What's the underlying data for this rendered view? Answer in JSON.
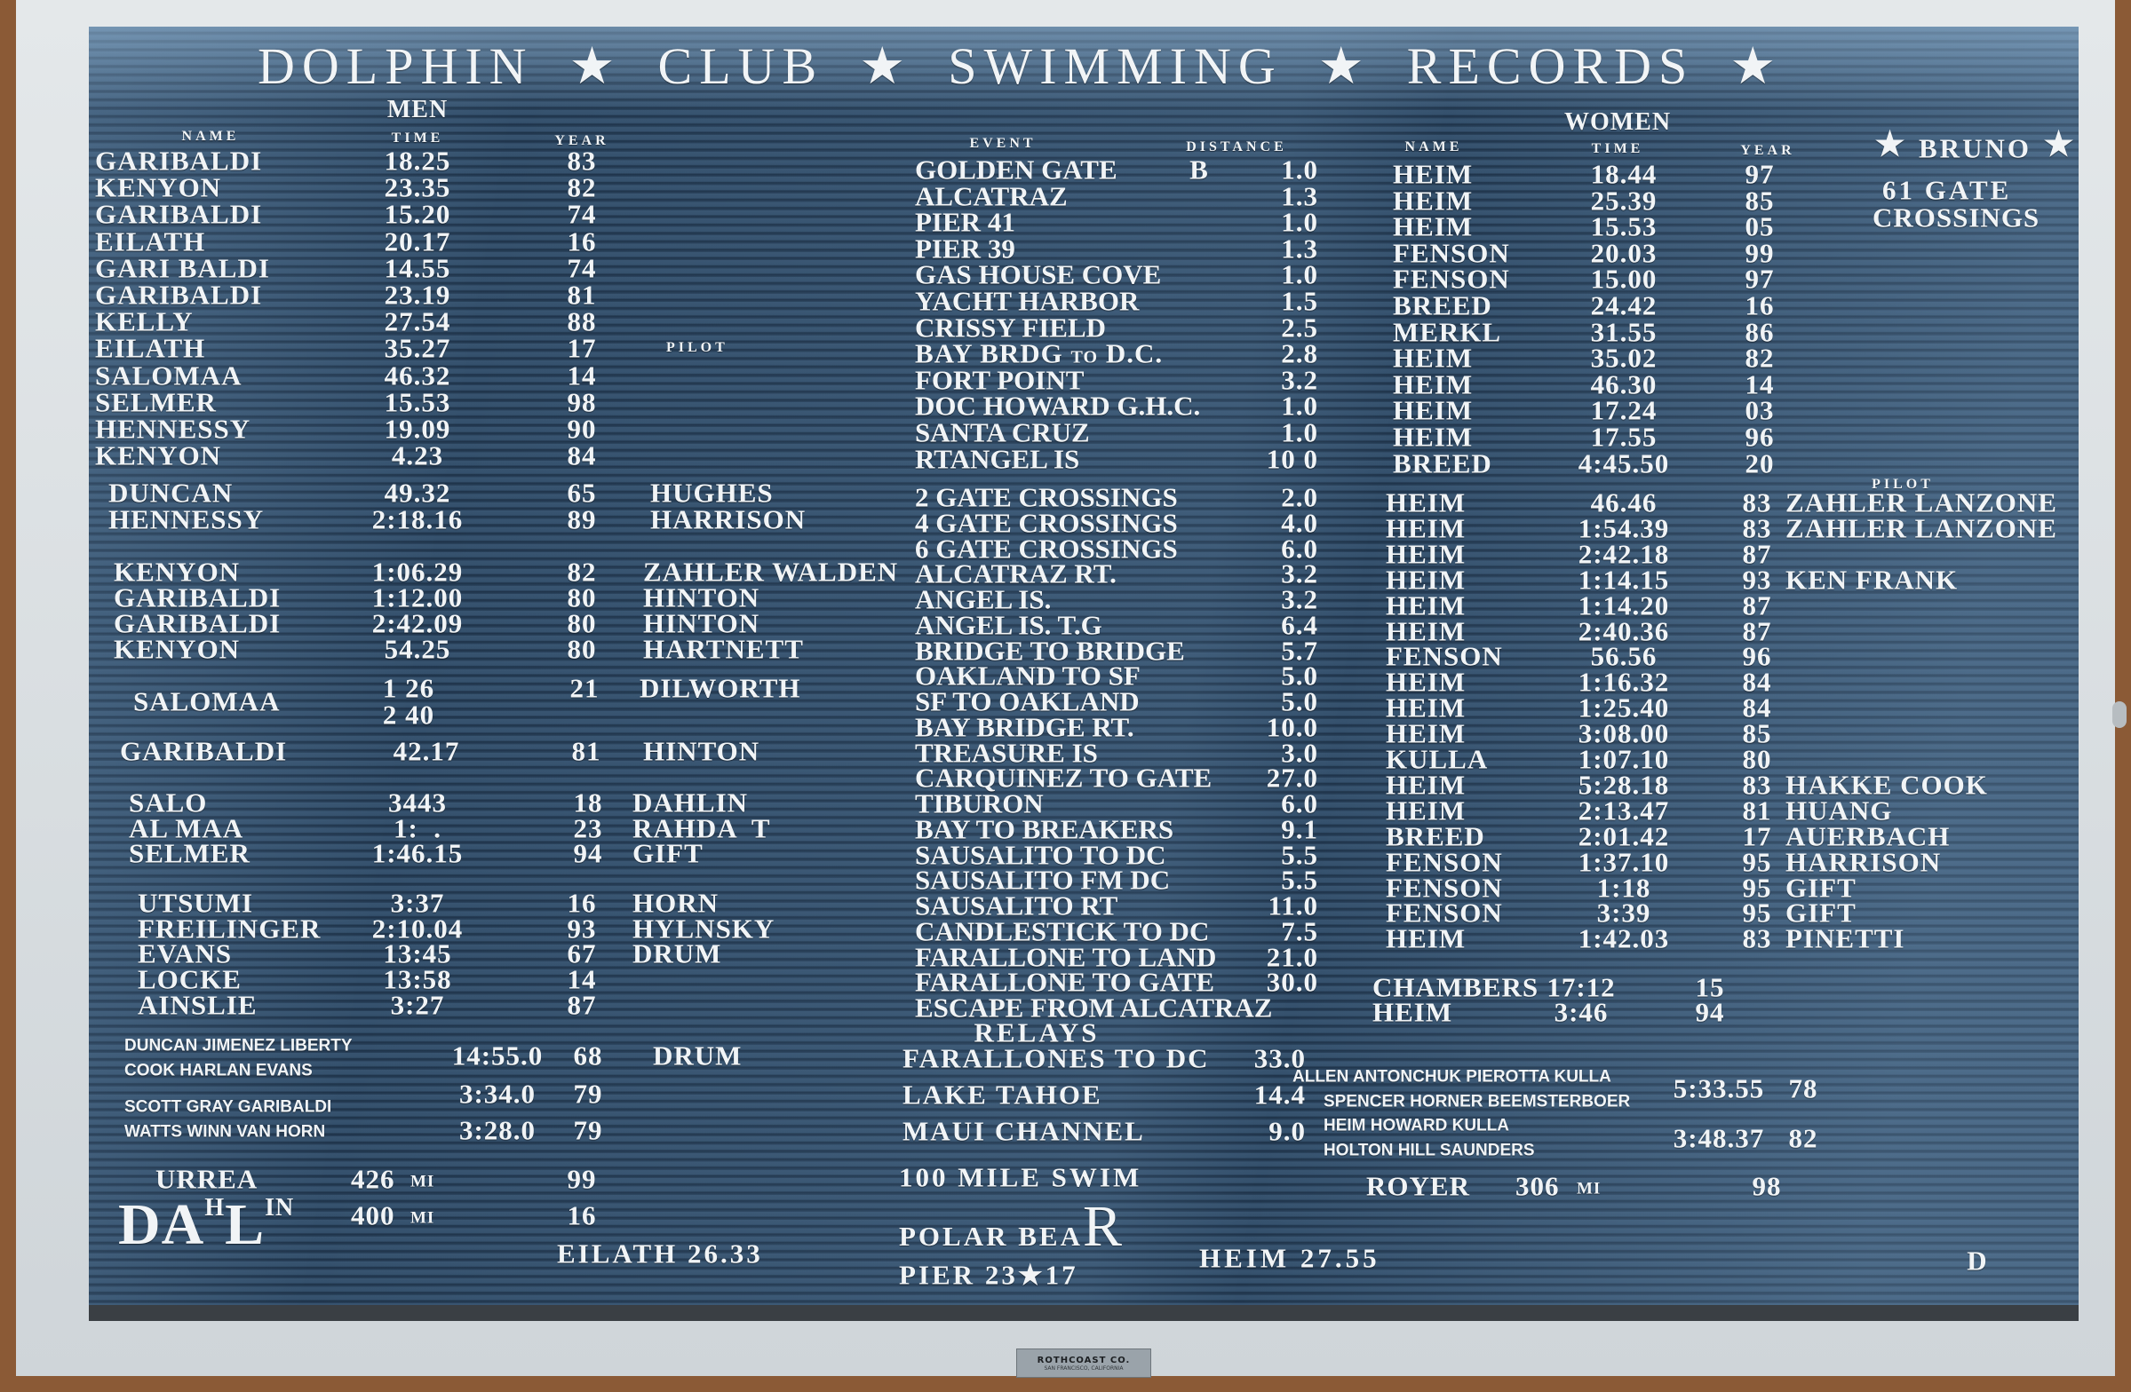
{
  "title": {
    "words": [
      "DOLPHIN",
      "CLUB",
      "SWIMMING",
      "RECORDS"
    ],
    "separator": "★"
  },
  "men": {
    "heading": "MEN",
    "col_headers": {
      "name": "NAME",
      "time": "TIME",
      "year": "YEAR"
    },
    "groups": [
      {
        "rows": [
          {
            "name": "GARIBALDI",
            "time": "18.25",
            "year": "83"
          },
          {
            "name": "KENYON",
            "time": "23.35",
            "year": "82"
          },
          {
            "name": "GARIBALDI",
            "time": "15.20",
            "year": "74"
          },
          {
            "name": "EILATH",
            "time": "20.17",
            "year": "16"
          },
          {
            "name": "GARI BALDI",
            "time": "14.55",
            "year": "74"
          },
          {
            "name": "GARIBALDI",
            "time": "23.19",
            "year": "81"
          },
          {
            "name": "KELLY",
            "time": "27.54",
            "year": "88"
          },
          {
            "name": "EILATH",
            "time": "35.27",
            "year": "17",
            "note": "PILOT"
          },
          {
            "name": "SALOMAA",
            "time": "46.32",
            "year": "14"
          },
          {
            "name": "SELMER",
            "time": "15.53",
            "year": "98"
          },
          {
            "name": "HENNESSY",
            "time": "19.09",
            "year": "90"
          },
          {
            "name": "KENYON",
            "time": "4.23",
            "year": "84"
          }
        ]
      },
      {
        "rows": [
          {
            "name": "DUNCAN",
            "time": "49.32",
            "year": "65",
            "pilot": "HUGHES"
          },
          {
            "name": "HENNESSY",
            "time": "2:18.16",
            "year": "89",
            "pilot": "HARRISON"
          }
        ]
      },
      {
        "rows": [
          {
            "name": "KENYON",
            "time": "1:06.29",
            "year": "82",
            "pilot": "ZAHLER WALDEN"
          },
          {
            "name": "GARIBALDI",
            "time": "1:12.00",
            "year": "80",
            "pilot": "HINTON"
          },
          {
            "name": "GARIBALDI",
            "time": "2:42.09",
            "year": "80",
            "pilot": "HINTON"
          },
          {
            "name": "KENYON",
            "time": "54.25",
            "year": "80",
            "pilot": "HARTNETT"
          }
        ]
      },
      {
        "rows": [
          {
            "time": "1 26",
            "year": "21",
            "pilot": "DILWORTH"
          },
          {
            "name": "SALOMAA"
          },
          {
            "time": "2 40"
          }
        ]
      },
      {
        "rows": [
          {
            "name": "GARIBALDI",
            "time": "42.17",
            "year": "81",
            "pilot": "HINTON"
          }
        ]
      },
      {
        "rows": [
          {
            "name": "SALO",
            "time": "3443",
            "year": "18",
            "pilot": "DAHLIN"
          },
          {
            "name": "AL MAA",
            "time": "1:  .",
            "year": "23",
            "pilot": "RAHDA  T"
          },
          {
            "name": "SELMER",
            "time": "1:46.15",
            "year": "94",
            "pilot": "GIFT"
          }
        ]
      },
      {
        "rows": [
          {
            "name": "UTSUMI",
            "time": "3:37",
            "year": "16",
            "pilot": "HORN"
          },
          {
            "name": "FREILINGER",
            "time": "2:10.04",
            "year": "93",
            "pilot": "HYLNSKY"
          },
          {
            "name": "EVANS",
            "time": "13:45",
            "year": "67",
            "pilot": "DRUM"
          },
          {
            "name": "LOCKE",
            "time": "13:58",
            "year": "14"
          },
          {
            "name": "AINSLIE",
            "time": "3:27",
            "year": "87"
          }
        ]
      }
    ],
    "relays": [
      {
        "swimmers": [
          "DUNCAN JIMENEZ LIBERTY",
          "COOK HARLAN EVANS"
        ],
        "time": "14:55.0",
        "year": "68",
        "pilot": "DRUM"
      },
      {
        "swimmers": [
          "SCOTT GRAY GARIBALDI"
        ],
        "time": "3:34.0",
        "year": "79"
      },
      {
        "swimmers": [
          "WATTS WINN VAN HORN"
        ],
        "time": "3:28.0",
        "year": "79"
      }
    ],
    "distance": [
      {
        "name": "URREA",
        "miles": "426",
        "unit": "MI",
        "year": "99"
      },
      {
        "name": "DAHLIN",
        "miles": "400",
        "unit": "MI",
        "year": "16"
      }
    ],
    "polar_bear": "EILATH 26.33"
  },
  "events": {
    "col_headers": {
      "event": "EVENT",
      "distance": "DISTANCE"
    },
    "groups": [
      {
        "rows": [
          {
            "event": "GOLDEN GATE",
            "note": "B",
            "distance": "1.0"
          },
          {
            "event": "ALCATRAZ",
            "distance": "1.3"
          },
          {
            "event": "PIER 41",
            "distance": "1.0"
          },
          {
            "event": "PIER 39",
            "distance": "1.3"
          },
          {
            "event": "GAS HOUSE COVE",
            "distance": "1.0"
          },
          {
            "event": "YACHT HARBOR",
            "distance": "1.5"
          },
          {
            "event": "CRISSY FIELD",
            "distance": "2.5"
          },
          {
            "event": "BAY BRDG TO D.C.",
            "distance": "2.8"
          },
          {
            "event": "FORT POINT",
            "distance": "3.2"
          },
          {
            "event": "DOC HOWARD G.H.C.",
            "distance": "1.0"
          },
          {
            "event": "SANTA CRUZ",
            "distance": "1.0"
          },
          {
            "event": "RTANGEL IS",
            "distance": "10 0"
          }
        ]
      },
      {
        "rows": [
          {
            "event": "2 GATE CROSSINGS",
            "distance": "2.0"
          },
          {
            "event": "4 GATE CROSSINGS",
            "distance": "4.0"
          },
          {
            "event": "6 GATE CROSSINGS",
            "distance": "6.0"
          },
          {
            "event": "ALCATRAZ RT.",
            "distance": "3.2"
          },
          {
            "event": "ANGEL IS.",
            "distance": "3.2"
          },
          {
            "event": "ANGEL IS. T.G",
            "distance": "6.4"
          },
          {
            "event": "BRIDGE TO BRIDGE",
            "distance": "5.7"
          },
          {
            "event": "OAKLAND TO SF",
            "distance": "5.0"
          },
          {
            "event": "SF TO OAKLAND",
            "distance": "5.0"
          },
          {
            "event": "BAY BRIDGE RT.",
            "distance": "10.0"
          },
          {
            "event": "TREASURE IS",
            "distance": "3.0"
          },
          {
            "event": "CARQUINEZ TO GATE",
            "distance": "27.0"
          },
          {
            "event": "TIBURON",
            "distance": "6.0"
          },
          {
            "event": "BAY TO BREAKERS",
            "distance": "9.1"
          },
          {
            "event": "SAUSALITO TO DC",
            "distance": "5.5"
          },
          {
            "event": "SAUSALITO FM DC",
            "distance": "5.5"
          },
          {
            "event": "SAUSALITO RT",
            "distance": "11.0"
          },
          {
            "event": "CANDLESTICK TO DC",
            "distance": "7.5"
          },
          {
            "event": "FARALLONE TO LAND",
            "distance": "21.0"
          },
          {
            "event": "FARALLONE TO GATE",
            "distance": "30.0"
          },
          {
            "event": "ESCAPE FROM ALCATRAZ"
          }
        ]
      }
    ],
    "relays_heading": "RELAYS",
    "relays": [
      {
        "event": "FARALLONES TO DC",
        "distance": "33.0"
      },
      {
        "event": "LAKE TAHOE",
        "distance": "14.4"
      },
      {
        "event": "MAUI CHANNEL",
        "distance": "9.0"
      }
    ],
    "distance_swim": "100 MILE SWIM",
    "polar_bear": "POLAR BEAR",
    "polar_pier": "PIER 23★17"
  },
  "women": {
    "heading": "WOMEN",
    "col_headers": {
      "name": "NAME",
      "time": "TIME",
      "year": "YEAR"
    },
    "pilot_header": "PILOT",
    "groups": [
      {
        "rows": [
          {
            "name": "HEIM",
            "time": "18.44",
            "year": "97"
          },
          {
            "name": "HEIM",
            "time": "25.39",
            "year": "85"
          },
          {
            "name": "HEIM",
            "time": "15.53",
            "year": "05"
          },
          {
            "name": "FENSON",
            "time": "20.03",
            "year": "99"
          },
          {
            "name": "FENSON",
            "time": "15.00",
            "year": "97"
          },
          {
            "name": "BREED",
            "time": "24.42",
            "year": "16"
          },
          {
            "name": "MERKL",
            "time": "31.55",
            "year": "86"
          },
          {
            "name": "HEIM",
            "time": "35.02",
            "year": "82"
          },
          {
            "name": "HEIM",
            "time": "46.30",
            "year": "14"
          },
          {
            "name": "HEIM",
            "time": "17.24",
            "year": "03"
          },
          {
            "name": "HEIM",
            "time": "17.55",
            "year": "96"
          },
          {
            "name": "BREED",
            "time": "4:45.50",
            "year": "20"
          }
        ]
      },
      {
        "rows": [
          {
            "name": "HEIM",
            "time": "46.46",
            "year": "83",
            "pilot": "ZAHLER LANZONE"
          },
          {
            "name": "HEIM",
            "time": "1:54.39",
            "year": "83",
            "pilot": "ZAHLER LANZONE"
          },
          {
            "name": "HEIM",
            "time": "2:42.18",
            "year": "87"
          },
          {
            "name": "HEIM",
            "time": "1:14.15",
            "year": "93",
            "pilot": "KEN FRANK"
          },
          {
            "name": "HEIM",
            "time": "1:14.20",
            "year": "87"
          },
          {
            "name": "HEIM",
            "time": "2:40.36",
            "year": "87"
          },
          {
            "name": "FENSON",
            "time": "56.56",
            "year": "96"
          },
          {
            "name": "HEIM",
            "time": "1:16.32",
            "year": "84"
          },
          {
            "name": "HEIM",
            "time": "1:25.40",
            "year": "84"
          },
          {
            "name": "HEIM",
            "time": "3:08.00",
            "year": "85"
          },
          {
            "name": "KULLA",
            "time": "1:07.10",
            "year": "80"
          },
          {
            "name": "HEIM",
            "time": "5:28.18",
            "year": "83",
            "pilot": "HAKKE COOK"
          },
          {
            "name": "HEIM",
            "time": "2:13.47",
            "year": "81",
            "pilot": "HUANG"
          },
          {
            "name": "BREED",
            "time": "2:01.42",
            "year": "17",
            "pilot": "AUERBACH"
          },
          {
            "name": "FENSON",
            "time": "1:37.10",
            "year": "95",
            "pilot": "HARRISON"
          },
          {
            "name": "FENSON",
            "time": "1:18",
            "year": "95",
            "pilot": "GIFT"
          },
          {
            "name": "FENSON",
            "time": "3:39",
            "year": "95",
            "pilot": "GIFT"
          },
          {
            "name": "HEIM",
            "time": "1:42.03",
            "year": "83",
            "pilot": "PINETTI"
          }
        ]
      },
      {
        "rows": [
          {
            "name": "CHAMBERS",
            "time": "17:12",
            "year": "15"
          },
          {
            "name": "HEIM",
            "time": "3:46",
            "year": "94"
          }
        ]
      }
    ],
    "relays": [
      {
        "swimmers": [
          "ALLEN ANTONCHUK PIEROTTA KULLA",
          "SPENCER HORNER BEEMSTERBOER"
        ],
        "time": "5:33.55",
        "year": "78"
      },
      {
        "swimmers": [
          "HEIM HOWARD KULLA",
          "HOLTON HILL SAUNDERS"
        ],
        "time": "3:48.37",
        "year": "82"
      }
    ],
    "distance": [
      {
        "name": "ROYER",
        "miles": "306",
        "unit": "MI",
        "year": "98"
      }
    ],
    "polar_bear": "HEIM 27.55"
  },
  "bruno": {
    "name": "BRUNO",
    "line1": "61 GATE",
    "line2": "CROSSINGS",
    "icon": "star-icon"
  },
  "corner_letter": "D",
  "maker_plate": {
    "line1": "ROTHCOAST CO.",
    "line2": "SAN FRANCISCO, CALIFORNIA"
  },
  "colors": {
    "board": "#2e4763",
    "letters": "#f1f4f6",
    "frame": "#dfe3e6"
  }
}
